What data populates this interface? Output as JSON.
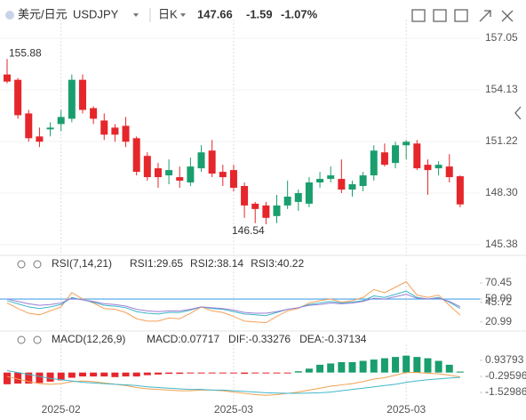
{
  "header": {
    "pair": "美元/日元",
    "symbol": "USDJPY",
    "period": "日K",
    "price": "147.66",
    "change": "-1.59",
    "change_pct": "-1.07%"
  },
  "chart_data": [
    {
      "type": "candlestick",
      "categories": [
        null,
        null,
        null,
        null,
        null,
        "2025-02",
        null,
        null,
        null,
        null,
        null,
        null,
        null,
        null,
        null,
        null,
        null,
        null,
        null,
        null,
        null,
        "2025-03",
        null,
        null,
        null,
        null,
        null,
        null,
        null,
        null,
        null,
        null,
        null,
        null,
        null,
        null,
        null,
        "2025-03",
        null,
        null,
        null,
        null,
        null
      ],
      "open": [
        155.0,
        154.7,
        152.8,
        151.5,
        151.9,
        152.2,
        152.5,
        154.7,
        153.1,
        152.4,
        152.0,
        152.1,
        151.4,
        150.4,
        149.7,
        149.3,
        149.2,
        148.9,
        149.7,
        150.7,
        149.5,
        149.6,
        148.7,
        147.7,
        147.6,
        147.0,
        147.6,
        147.8,
        147.7,
        148.9,
        149.1,
        149.1,
        148.5,
        148.7,
        149.3,
        150.6,
        150.0,
        151.0,
        151.1,
        149.9,
        149.7,
        149.8,
        149.25
      ],
      "high": [
        155.88,
        154.8,
        153.0,
        152.0,
        152.3,
        153.0,
        155.0,
        155.0,
        153.2,
        152.8,
        152.2,
        152.6,
        151.5,
        150.6,
        150.0,
        150.2,
        149.8,
        150.3,
        151.0,
        151.3,
        149.9,
        149.9,
        148.9,
        147.8,
        147.8,
        148.2,
        149.0,
        148.5,
        149.2,
        149.5,
        149.8,
        150.2,
        149.0,
        149.5,
        151.0,
        151.1,
        151.2,
        151.3,
        151.3,
        150.2,
        150.1,
        150.5,
        149.3
      ],
      "low": [
        154.5,
        152.5,
        151.2,
        150.9,
        151.5,
        151.8,
        152.3,
        152.8,
        152.2,
        151.3,
        151.2,
        150.9,
        149.3,
        149.0,
        148.6,
        148.8,
        148.6,
        148.7,
        149.5,
        149.2,
        148.7,
        148.4,
        146.9,
        146.6,
        146.54,
        146.6,
        147.4,
        147.3,
        147.5,
        148.6,
        148.9,
        148.3,
        148.1,
        148.4,
        149.0,
        149.8,
        149.7,
        150.2,
        149.6,
        148.2,
        149.3,
        148.9,
        147.5
      ],
      "close": [
        154.6,
        152.7,
        151.4,
        151.2,
        152.0,
        152.6,
        154.7,
        153.0,
        152.5,
        151.6,
        151.6,
        151.2,
        149.5,
        149.2,
        149.2,
        149.6,
        149.0,
        149.8,
        150.6,
        149.4,
        149.2,
        148.6,
        147.6,
        147.4,
        146.9,
        147.6,
        148.1,
        148.3,
        148.9,
        149.1,
        149.3,
        148.5,
        148.8,
        149.3,
        150.7,
        149.9,
        151.0,
        151.2,
        149.7,
        149.6,
        149.9,
        149.2,
        147.66
      ],
      "up_color": "#1a9e6e",
      "down_color": "#e5262b",
      "ylim": [
        144.88,
        157.7
      ],
      "yticks": [
        157.05,
        154.13,
        151.22,
        {
          "value": 148.3,
          "label": "148.30"
        },
        145.38
      ],
      "annotations": [
        155.88,
        146.54
      ]
    },
    {
      "type": "line",
      "title": "RSI(7,14,21)",
      "series": [
        {
          "name": "RSI1:29.65",
          "color": "#f5a15a",
          "values": [
            45,
            38,
            32,
            30,
            35,
            40,
            58,
            50,
            45,
            38,
            37,
            33,
            25,
            22,
            22,
            26,
            25,
            32,
            40,
            35,
            33,
            28,
            22,
            21,
            20,
            28,
            35,
            38,
            45,
            48,
            50,
            46,
            48,
            52,
            62,
            58,
            65,
            72,
            55,
            52,
            55,
            42,
            29.65
          ]
        },
        {
          "name": "RSI2:38.14",
          "color": "#3bb5c8",
          "values": [
            48,
            44,
            40,
            38,
            40,
            43,
            52,
            49,
            46,
            42,
            41,
            39,
            34,
            32,
            31,
            33,
            33,
            36,
            40,
            38,
            37,
            34,
            31,
            30,
            29,
            33,
            37,
            39,
            43,
            45,
            47,
            45,
            46,
            48,
            54,
            52,
            56,
            60,
            52,
            50,
            52,
            46,
            38.14
          ]
        },
        {
          "name": "RSI3:40.22",
          "color": "#9b7fd6",
          "values": [
            50,
            47,
            44,
            42,
            43,
            45,
            51,
            49,
            47,
            44,
            43,
            41,
            37,
            35,
            34,
            35,
            35,
            37,
            40,
            39,
            38,
            36,
            33,
            32,
            32,
            34,
            37,
            39,
            42,
            43,
            45,
            44,
            45,
            47,
            51,
            50,
            53,
            56,
            51,
            50,
            51,
            47,
            40.22
          ]
        }
      ],
      "ylim": [
        14,
        85
      ],
      "yticks": [
        70.45,
        {
          "value": 50,
          "label": "50.00"
        },
        45.72,
        20.99
      ],
      "hline": 50,
      "hline_color": "#4aa3e8"
    },
    {
      "type": "combo",
      "title": "MACD(12,26,9)",
      "series": [
        {
          "name": "MACD:0.07717",
          "type": "bar",
          "color": "#a583d8",
          "up_color": "#1a9e6e",
          "down_color": "#e5262b",
          "values": [
            -0.9,
            -0.85,
            -0.85,
            -0.8,
            -0.7,
            -0.6,
            -0.4,
            -0.3,
            -0.3,
            -0.3,
            -0.35,
            -0.3,
            -0.3,
            -0.2,
            -0.15,
            -0.1,
            -0.1,
            -0.05,
            -0.05,
            -0.05,
            -0.05,
            -0.05,
            -0.1,
            -0.05,
            -0.05,
            -0.05,
            -0.05,
            0.1,
            0.3,
            0.6,
            0.7,
            0.8,
            0.8,
            0.9,
            1.0,
            1.1,
            1.2,
            1.3,
            1.2,
            1.1,
            0.9,
            0.6,
            0.07717
          ]
        },
        {
          "name": "DIF:-0.33276",
          "type": "line",
          "color": "#f2a04e",
          "values": [
            -0.3,
            -0.5,
            -0.7,
            -0.85,
            -0.9,
            -0.85,
            -0.7,
            -0.65,
            -0.7,
            -0.8,
            -0.9,
            -1.0,
            -1.15,
            -1.25,
            -1.3,
            -1.35,
            -1.4,
            -1.4,
            -1.35,
            -1.35,
            -1.4,
            -1.5,
            -1.6,
            -1.7,
            -1.75,
            -1.7,
            -1.6,
            -1.5,
            -1.35,
            -1.2,
            -1.05,
            -0.95,
            -0.85,
            -0.7,
            -0.5,
            -0.4,
            -0.2,
            0.0,
            0.0,
            -0.05,
            -0.1,
            -0.2,
            -0.33276
          ]
        },
        {
          "name": "DEA:-0.37134",
          "type": "line",
          "color": "#40b7c9",
          "values": [
            0.15,
            0.0,
            -0.15,
            -0.3,
            -0.45,
            -0.55,
            -0.65,
            -0.75,
            -0.8,
            -0.85,
            -0.9,
            -0.95,
            -1.0,
            -1.1,
            -1.15,
            -1.2,
            -1.25,
            -1.3,
            -1.3,
            -1.35,
            -1.35,
            -1.4,
            -1.45,
            -1.5,
            -1.55,
            -1.58,
            -1.6,
            -1.6,
            -1.58,
            -1.55,
            -1.5,
            -1.4,
            -1.3,
            -1.2,
            -1.1,
            -1.0,
            -0.9,
            -0.75,
            -0.65,
            -0.55,
            -0.48,
            -0.42,
            -0.37134
          ]
        }
      ],
      "ylim": [
        -2.28,
        1.62
      ],
      "yticks": [
        0.93793,
        -0.29596,
        -1.52986
      ]
    }
  ]
}
